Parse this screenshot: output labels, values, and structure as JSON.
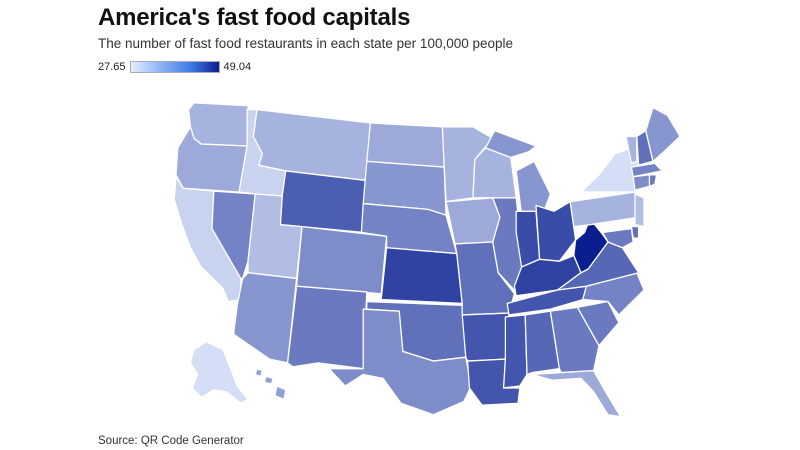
{
  "title": "America's fast food capitals",
  "subtitle": "The number of fast food restaurants in each state per 100,000 people",
  "legend": {
    "min_label": "27.65",
    "max_label": "49.04",
    "min": 27.65,
    "max": 49.04,
    "color_low": "#e6efff",
    "color_high": "#0a1f8f"
  },
  "source": "Source: QR Code Generator",
  "map_data": {
    "type": "choropleth",
    "region": "United States",
    "states": [
      {
        "code": "WA",
        "value": 33
      },
      {
        "code": "OR",
        "value": 34
      },
      {
        "code": "CA",
        "value": 30
      },
      {
        "code": "NV",
        "value": 38
      },
      {
        "code": "ID",
        "value": 30
      },
      {
        "code": "MT",
        "value": 33
      },
      {
        "code": "WY",
        "value": 42
      },
      {
        "code": "UT",
        "value": 32
      },
      {
        "code": "AZ",
        "value": 36
      },
      {
        "code": "CO",
        "value": 37
      },
      {
        "code": "NM",
        "value": 39
      },
      {
        "code": "ND",
        "value": 34
      },
      {
        "code": "SD",
        "value": 36
      },
      {
        "code": "NE",
        "value": 38
      },
      {
        "code": "KS",
        "value": 45
      },
      {
        "code": "OK",
        "value": 40
      },
      {
        "code": "TX",
        "value": 37
      },
      {
        "code": "MN",
        "value": 33
      },
      {
        "code": "IA",
        "value": 34
      },
      {
        "code": "MO",
        "value": 40
      },
      {
        "code": "AR",
        "value": 43
      },
      {
        "code": "LA",
        "value": 43
      },
      {
        "code": "WI",
        "value": 33
      },
      {
        "code": "IL",
        "value": 39
      },
      {
        "code": "MI",
        "value": 36
      },
      {
        "code": "IN",
        "value": 44
      },
      {
        "code": "OH",
        "value": 44
      },
      {
        "code": "KY",
        "value": 45
      },
      {
        "code": "TN",
        "value": 43
      },
      {
        "code": "MS",
        "value": 43
      },
      {
        "code": "AL",
        "value": 41
      },
      {
        "code": "GA",
        "value": 39
      },
      {
        "code": "FL",
        "value": 34
      },
      {
        "code": "SC",
        "value": 39
      },
      {
        "code": "NC",
        "value": 38
      },
      {
        "code": "VA",
        "value": 41
      },
      {
        "code": "WV",
        "value": 49.04
      },
      {
        "code": "PA",
        "value": 33
      },
      {
        "code": "NY",
        "value": 29
      },
      {
        "code": "VT",
        "value": 33
      },
      {
        "code": "NH",
        "value": 40
      },
      {
        "code": "ME",
        "value": 36
      },
      {
        "code": "MA",
        "value": 38
      },
      {
        "code": "RI",
        "value": 39
      },
      {
        "code": "CT",
        "value": 37
      },
      {
        "code": "NJ",
        "value": 32
      },
      {
        "code": "DE",
        "value": 40
      },
      {
        "code": "MD",
        "value": 39
      },
      {
        "code": "AK",
        "value": 29
      },
      {
        "code": "HI",
        "value": 35
      }
    ]
  }
}
